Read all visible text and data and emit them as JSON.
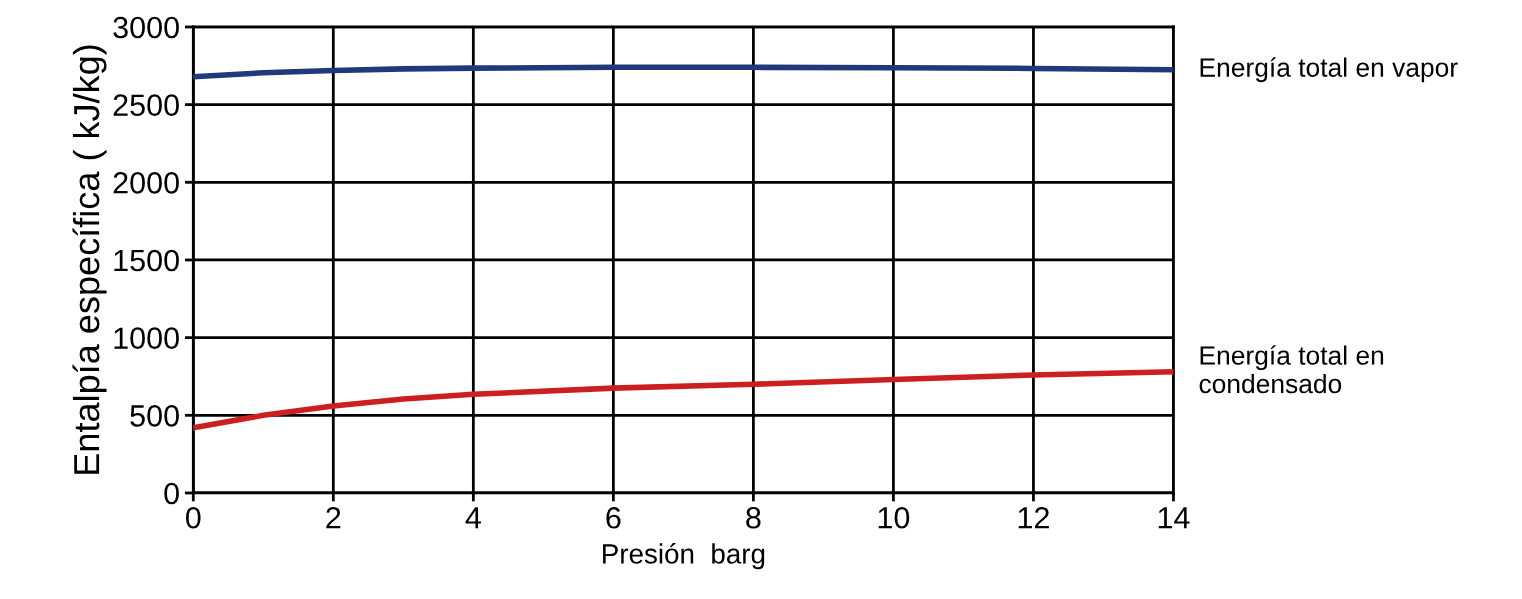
{
  "chart_data": {
    "type": "line",
    "xlabel": "Presión  barg",
    "ylabel": "Entalpía específica ( kJ/kg)",
    "xlim": [
      0,
      14
    ],
    "xticks": [
      0,
      2,
      4,
      6,
      8,
      10,
      12,
      14
    ],
    "ylim": [
      0,
      3000
    ],
    "yticks": [
      0,
      500,
      1000,
      1500,
      2000,
      2500,
      3000
    ],
    "grid": true,
    "marker": "none",
    "line_style": "solid",
    "series": [
      {
        "name": "Energía total en vapor",
        "color": "#1f3a7a",
        "x": [
          0,
          1,
          2,
          3,
          4,
          6,
          8,
          10,
          12,
          14
        ],
        "values": [
          2680,
          2705,
          2720,
          2730,
          2735,
          2740,
          2740,
          2738,
          2733,
          2725
        ]
      },
      {
        "name": "Energía total en\ncondensado",
        "color": "#cc1f1f",
        "x": [
          0,
          1,
          2,
          3,
          4,
          6,
          8,
          10,
          12,
          14
        ],
        "values": [
          420,
          500,
          560,
          605,
          635,
          675,
          700,
          730,
          760,
          780
        ]
      }
    ]
  }
}
